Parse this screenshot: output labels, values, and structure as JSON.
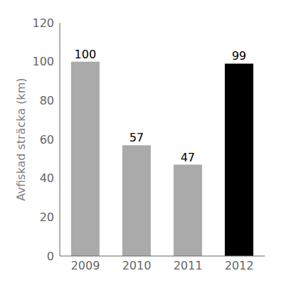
{
  "chart_data": {
    "type": "bar",
    "categories": [
      "2009",
      "2010",
      "2011",
      "2012"
    ],
    "values": [
      100,
      57,
      47,
      99
    ],
    "colors": [
      "#aaaaaa",
      "#aaaaaa",
      "#aaaaaa",
      "#000000"
    ],
    "ylabel": "Avfiskad sträcka (km)",
    "ylim": [
      0,
      120
    ],
    "yticks": [
      0,
      20,
      40,
      60,
      80,
      100,
      120
    ],
    "data_labels": true
  }
}
